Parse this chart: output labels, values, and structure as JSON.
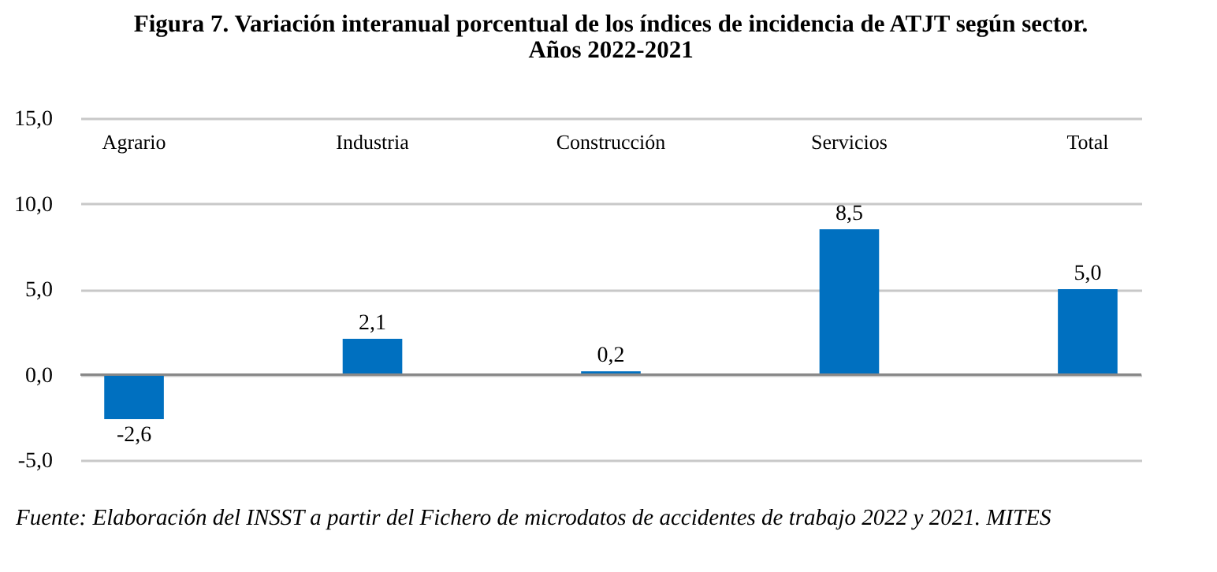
{
  "chart_data": {
    "type": "bar",
    "title": "Figura 7. Variación interanual porcentual de los índices de incidencia de ATJT según sector.",
    "subtitle": "Años 2022-2021",
    "categories": [
      "Agrario",
      "Industria",
      "Construcción",
      "Servicios",
      "Total"
    ],
    "values": [
      -2.6,
      2.1,
      0.2,
      8.5,
      5.0
    ],
    "value_labels": [
      "-2,6",
      "2,1",
      "0,2",
      "8,5",
      "5,0"
    ],
    "color": "#0070c0",
    "ylim": [
      -5,
      15
    ],
    "yticks": [
      {
        "value": -5,
        "label": "-5,0"
      },
      {
        "value": 0,
        "label": "0,0"
      },
      {
        "value": 5,
        "label": "5,0"
      },
      {
        "value": 10,
        "label": "10,0"
      },
      {
        "value": 15,
        "label": "15,0"
      }
    ],
    "grid": "y",
    "annotations": [
      "Fuente: Elaboración del INSST a partir del Fichero de microdatos de accidentes de trabajo 2022 y 2021. MITES"
    ]
  }
}
